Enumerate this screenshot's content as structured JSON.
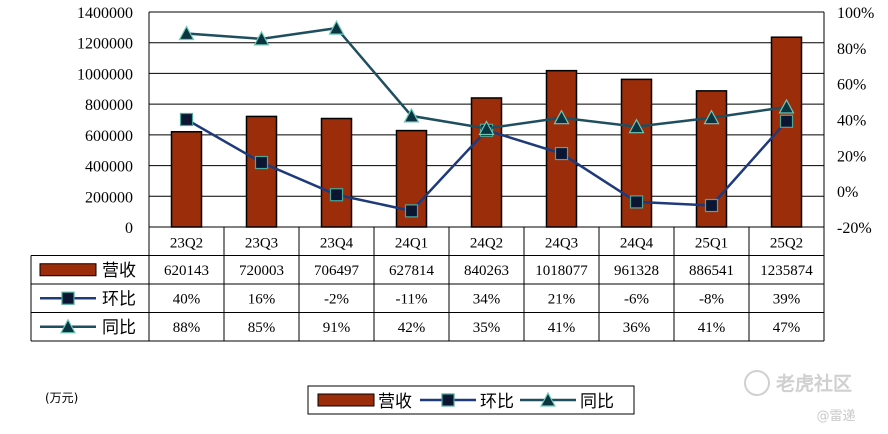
{
  "chart_data": {
    "type": "bar",
    "categories": [
      "23Q2",
      "23Q3",
      "23Q4",
      "24Q1",
      "24Q2",
      "24Q3",
      "24Q4",
      "25Q1",
      "25Q2"
    ],
    "series": [
      {
        "name": "营收",
        "type": "bar",
        "axis": "left",
        "color": "#9b2d0a",
        "values": [
          620143,
          720003,
          706497,
          627814,
          840263,
          1018077,
          961328,
          886541,
          1235874
        ],
        "labels": [
          "620143",
          "720003",
          "706497",
          "627814",
          "840263",
          "1018077",
          "961328",
          "886541",
          "1235874"
        ]
      },
      {
        "name": "环比",
        "type": "line",
        "axis": "right",
        "marker": "square",
        "color": "#1f3a7a",
        "values": [
          40,
          16,
          -2,
          -11,
          34,
          21,
          -6,
          -8,
          39
        ],
        "labels": [
          "40%",
          "16%",
          "-2%",
          "-11%",
          "34%",
          "21%",
          "-6%",
          "-8%",
          "39%"
        ]
      },
      {
        "name": "同比",
        "type": "line",
        "axis": "right",
        "marker": "triangle",
        "color": "#1f4e5f",
        "values": [
          88,
          85,
          91,
          42,
          35,
          41,
          36,
          41,
          47
        ],
        "labels": [
          "88%",
          "85%",
          "91%",
          "42%",
          "35%",
          "41%",
          "36%",
          "41%",
          "47%"
        ]
      }
    ],
    "y_left": {
      "min": 0,
      "max": 1400000,
      "ticks": [
        "0",
        "200000",
        "400000",
        "600000",
        "800000",
        "1000000",
        "1200000",
        "1400000"
      ]
    },
    "y_right": {
      "min": -20,
      "max": 100,
      "ticks": [
        "-20%",
        "0%",
        "20%",
        "40%",
        "60%",
        "80%",
        "100%"
      ]
    },
    "unit_label": "(万元)",
    "legend_position": "bottom",
    "grid": "horizontal",
    "data_table": true
  },
  "watermark": {
    "text": "老虎社区",
    "author": "@雷递"
  }
}
